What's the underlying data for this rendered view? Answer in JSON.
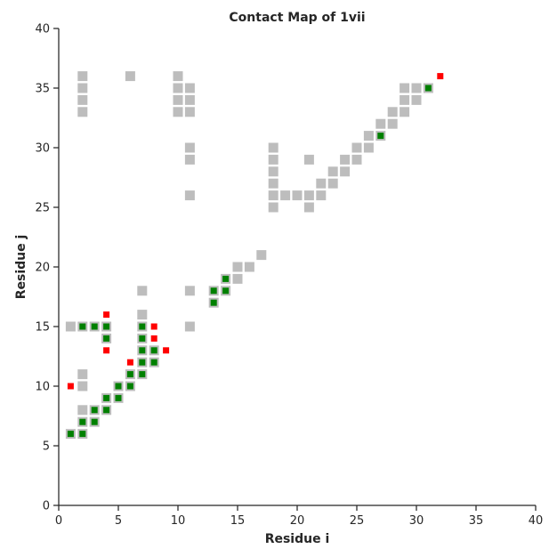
{
  "chart_data": {
    "type": "scatter",
    "title": "Contact Map of 1vii",
    "xlabel": "Residue i",
    "ylabel": "Residue j",
    "xlim": [
      0,
      40
    ],
    "ylim": [
      0,
      40
    ],
    "xticks": [
      0,
      5,
      10,
      15,
      20,
      25,
      30,
      35,
      40
    ],
    "yticks": [
      0,
      5,
      10,
      15,
      20,
      25,
      30,
      35,
      40
    ],
    "grid": false,
    "colors": {
      "gray": "#bdbdbd",
      "green": "#008000",
      "red": "#ff0000",
      "axis": "#262626"
    },
    "series": [
      {
        "kind": "gray-square",
        "points": [
          [
            1,
            6
          ],
          [
            2,
            6
          ],
          [
            2,
            7
          ],
          [
            3,
            7
          ],
          [
            2,
            8
          ],
          [
            3,
            8
          ],
          [
            4,
            8
          ],
          [
            4,
            9
          ],
          [
            5,
            9
          ],
          [
            5,
            10
          ],
          [
            6,
            10
          ],
          [
            2,
            10
          ],
          [
            2,
            11
          ],
          [
            6,
            11
          ],
          [
            7,
            11
          ],
          [
            7,
            12
          ],
          [
            8,
            12
          ],
          [
            7,
            13
          ],
          [
            8,
            13
          ],
          [
            4,
            14
          ],
          [
            7,
            14
          ],
          [
            1,
            15
          ],
          [
            2,
            15
          ],
          [
            3,
            15
          ],
          [
            4,
            15
          ],
          [
            7,
            15
          ],
          [
            11,
            15
          ],
          [
            7,
            16
          ],
          [
            7,
            18
          ],
          [
            11,
            18
          ],
          [
            13,
            17
          ],
          [
            13,
            18
          ],
          [
            14,
            18
          ],
          [
            14,
            19
          ],
          [
            15,
            19
          ],
          [
            15,
            20
          ],
          [
            16,
            20
          ],
          [
            17,
            21
          ],
          [
            18,
            25
          ],
          [
            21,
            25
          ],
          [
            18,
            26
          ],
          [
            19,
            26
          ],
          [
            20,
            26
          ],
          [
            21,
            26
          ],
          [
            22,
            26
          ],
          [
            18,
            27
          ],
          [
            22,
            27
          ],
          [
            23,
            27
          ],
          [
            18,
            28
          ],
          [
            23,
            28
          ],
          [
            24,
            28
          ],
          [
            18,
            29
          ],
          [
            21,
            29
          ],
          [
            24,
            29
          ],
          [
            25,
            29
          ],
          [
            18,
            30
          ],
          [
            25,
            30
          ],
          [
            26,
            30
          ],
          [
            26,
            31
          ],
          [
            27,
            31
          ],
          [
            27,
            32
          ],
          [
            28,
            32
          ],
          [
            28,
            33
          ],
          [
            29,
            33
          ],
          [
            29,
            34
          ],
          [
            30,
            34
          ],
          [
            29,
            35
          ],
          [
            30,
            35
          ],
          [
            31,
            35
          ],
          [
            11,
            26
          ],
          [
            11,
            29
          ],
          [
            11,
            30
          ],
          [
            2,
            33
          ],
          [
            2,
            34
          ],
          [
            2,
            35
          ],
          [
            2,
            36
          ],
          [
            6,
            36
          ],
          [
            10,
            33
          ],
          [
            10,
            34
          ],
          [
            10,
            35
          ],
          [
            10,
            36
          ],
          [
            11,
            33
          ],
          [
            11,
            34
          ],
          [
            11,
            35
          ]
        ]
      },
      {
        "kind": "green-square",
        "points": [
          [
            1,
            6
          ],
          [
            2,
            6
          ],
          [
            2,
            7
          ],
          [
            3,
            7
          ],
          [
            3,
            8
          ],
          [
            4,
            8
          ],
          [
            4,
            9
          ],
          [
            5,
            9
          ],
          [
            5,
            10
          ],
          [
            6,
            10
          ],
          [
            6,
            11
          ],
          [
            7,
            11
          ],
          [
            7,
            12
          ],
          [
            8,
            12
          ],
          [
            7,
            13
          ],
          [
            8,
            13
          ],
          [
            4,
            14
          ],
          [
            7,
            14
          ],
          [
            2,
            15
          ],
          [
            3,
            15
          ],
          [
            4,
            15
          ],
          [
            7,
            15
          ],
          [
            13,
            17
          ],
          [
            13,
            18
          ],
          [
            14,
            18
          ],
          [
            14,
            19
          ],
          [
            27,
            31
          ],
          [
            31,
            35
          ]
        ]
      },
      {
        "kind": "red-square",
        "points": [
          [
            1,
            10
          ],
          [
            6,
            12
          ],
          [
            4,
            13
          ],
          [
            9,
            13
          ],
          [
            8,
            14
          ],
          [
            8,
            15
          ],
          [
            4,
            16
          ],
          [
            32,
            36
          ]
        ]
      }
    ]
  }
}
